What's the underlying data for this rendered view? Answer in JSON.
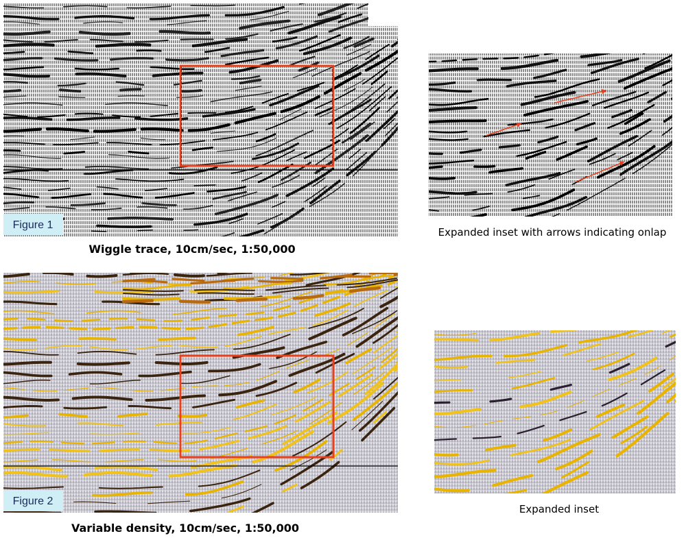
{
  "figures": [
    {
      "label": "Figure 1",
      "caption": "Wiggle trace, 10cm/sec, 1:50,000",
      "inset_caption": "Expanded inset with arrows indicating onlap"
    },
    {
      "label": "Figure 2",
      "caption": "Variable density, 10cm/sec, 1:50,000",
      "inset_caption": "Expanded inset"
    }
  ]
}
